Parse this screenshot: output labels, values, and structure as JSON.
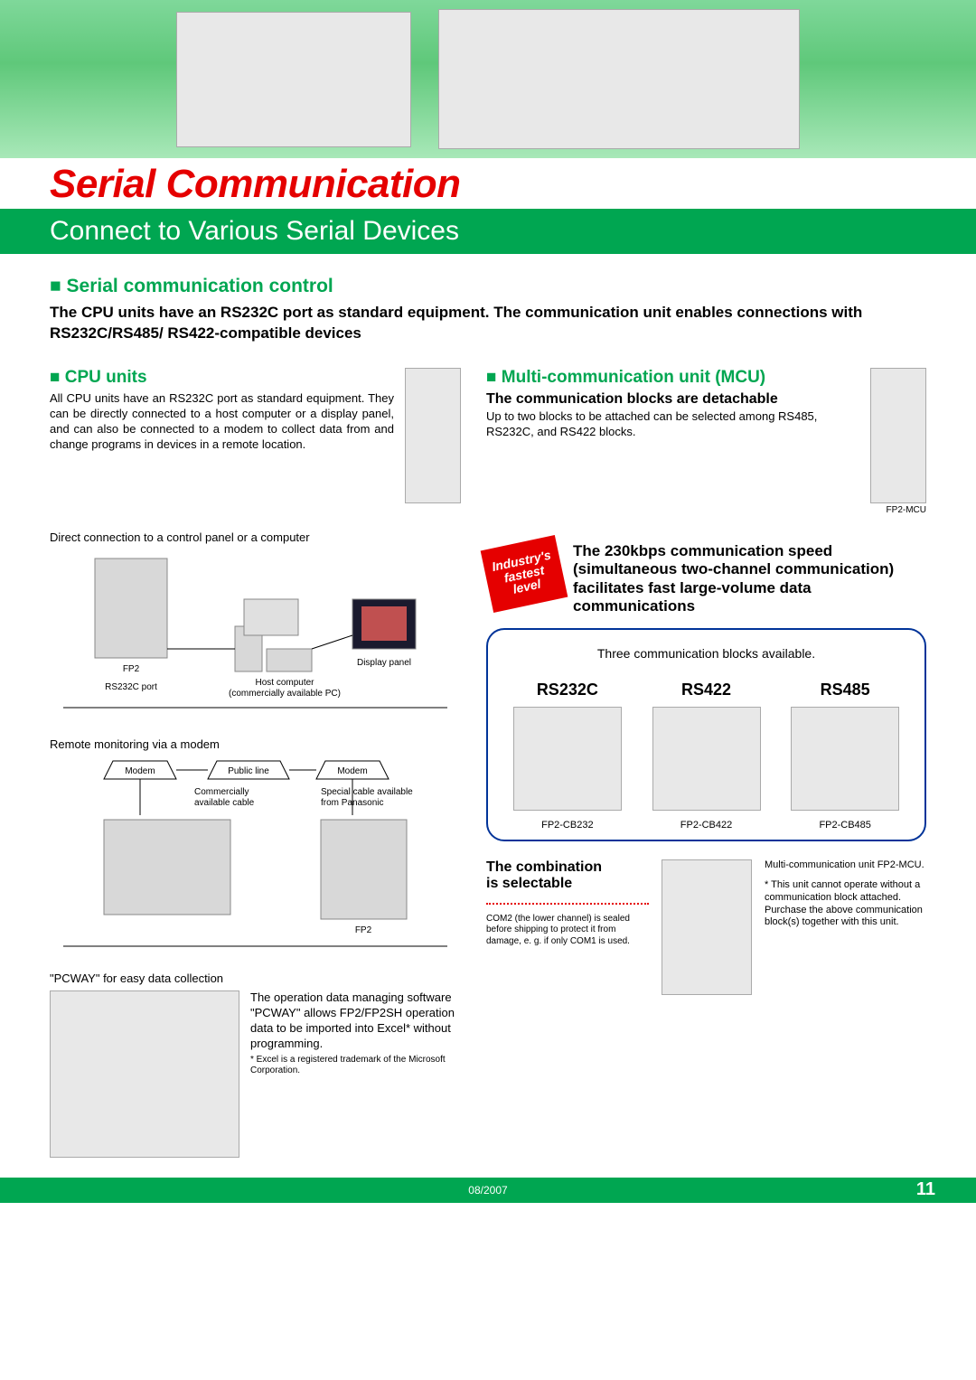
{
  "page": {
    "title": "Serial Communication",
    "subtitle": "Connect to Various Serial Devices",
    "footer_date": "08/2007",
    "footer_page": "11",
    "accent_green": "#00a651",
    "accent_red": "#e50000"
  },
  "main": {
    "heading": "Serial communication control",
    "intro": "The CPU units have an RS232C port as standard equipment. The communication unit enables connections with RS232C/RS485/ RS422-compatible devices"
  },
  "cpu": {
    "heading": "CPU units",
    "body": "All CPU units have an RS232C port as standard equipment. They can be directly connected to a host computer or a display panel, and can also be connected to a modem to collect data from and change programs in devices in a remote location."
  },
  "diagram1": {
    "label": "Direct connection to a control panel or a computer",
    "fp2": "FP2",
    "rs232c": "RS232C port",
    "host1": "Host computer",
    "host2": "(commercially available PC)",
    "display": "Display panel"
  },
  "diagram2": {
    "label": "Remote monitoring via a modem",
    "modem": "Modem",
    "public": "Public line",
    "cable1a": "Commercially",
    "cable1b": "available cable",
    "cable2a": "Special cable available",
    "cable2b": "from Panasonic",
    "fp2": "FP2"
  },
  "pcway": {
    "label": "\"PCWAY\" for easy data collection",
    "body": "The operation data managing software \"PCWAY\" allows FP2/FP2SH operation data to be imported into Excel* without programming.",
    "footnote": "* Excel is a registered trademark of the Microsoft Corporation."
  },
  "mcu": {
    "heading": "Multi-communication unit (MCU)",
    "sub1_title": "The communication blocks are detachable",
    "sub1_body": "Up to two blocks to be attached can be selected among RS485, RS232C, and RS422 blocks.",
    "img_caption": "FP2-MCU",
    "badge1": "Industry's",
    "badge2": "fastest",
    "badge3": "level",
    "speed_text": "The 230kbps communication speed (simultaneous two-channel communication) facilitates fast large-volume data communications"
  },
  "blocks": {
    "title": "Three communication blocks available.",
    "items": [
      {
        "name": "RS232C",
        "code": "FP2-CB232"
      },
      {
        "name": "RS422",
        "code": "FP2-CB422"
      },
      {
        "name": "RS485",
        "code": "FP2-CB485"
      }
    ]
  },
  "combination": {
    "title1": "The combination",
    "title2": "is selectable",
    "note": "COM2 (the lower channel) is sealed before shipping to protect it from damage, e. g. if only COM1 is used.",
    "right1": "Multi-communication unit FP2-MCU.",
    "right2": "* This unit cannot operate without a communication block attached. Purchase the above communication block(s) together with this unit."
  }
}
